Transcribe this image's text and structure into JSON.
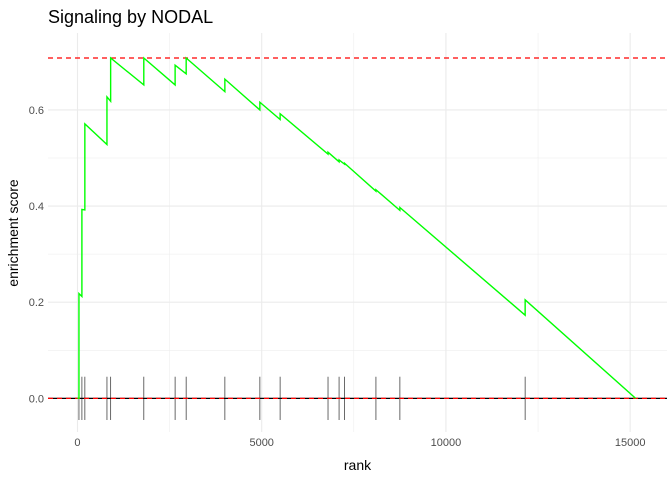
{
  "chart_data": {
    "type": "line",
    "title": "Signaling by NODAL",
    "xlabel": "rank",
    "ylabel": "enrichment score",
    "xlim": [
      -800,
      16000
    ],
    "ylim": [
      -0.07,
      0.76
    ],
    "x_ticks": [
      0,
      5000,
      10000,
      15000
    ],
    "x_tick_labels": [
      "0",
      "5000",
      "10000",
      "15000"
    ],
    "y_ticks": [
      0.0,
      0.2,
      0.4,
      0.6
    ],
    "y_tick_labels": [
      "0.0",
      "0.2",
      "0.4",
      "0.6"
    ],
    "grid": true,
    "colors": {
      "curve": "#00ff00",
      "threshold": "#ff0000",
      "baseline": "#000000",
      "ticks": "#444444",
      "grid": "#ebebeb"
    },
    "thresholds": {
      "max_es": 0.708,
      "baseline": 0.0
    },
    "enrichment_curve": [
      [
        0,
        0.0
      ],
      [
        40,
        0.0
      ],
      [
        40,
        0.218
      ],
      [
        120,
        0.212
      ],
      [
        120,
        0.393
      ],
      [
        200,
        0.392
      ],
      [
        200,
        0.571
      ],
      [
        800,
        0.528
      ],
      [
        800,
        0.627
      ],
      [
        900,
        0.618
      ],
      [
        900,
        0.708
      ],
      [
        1800,
        0.652
      ],
      [
        1800,
        0.708
      ],
      [
        2650,
        0.652
      ],
      [
        2650,
        0.693
      ],
      [
        2950,
        0.675
      ],
      [
        2950,
        0.708
      ],
      [
        4000,
        0.638
      ],
      [
        4000,
        0.664
      ],
      [
        4950,
        0.6
      ],
      [
        4950,
        0.616
      ],
      [
        5500,
        0.58
      ],
      [
        5500,
        0.592
      ],
      [
        6800,
        0.508
      ],
      [
        6800,
        0.512
      ],
      [
        7100,
        0.492
      ],
      [
        7100,
        0.496
      ],
      [
        7250,
        0.487
      ],
      [
        7250,
        0.489
      ],
      [
        8100,
        0.431
      ],
      [
        8100,
        0.434
      ],
      [
        8750,
        0.391
      ],
      [
        8750,
        0.397
      ],
      [
        12150,
        0.173
      ],
      [
        12150,
        0.205
      ],
      [
        15150,
        0.0
      ]
    ],
    "hit_ranks": [
      40,
      120,
      200,
      800,
      900,
      1800,
      2650,
      2950,
      4000,
      4950,
      5500,
      6800,
      7100,
      7250,
      8100,
      8750,
      12150
    ],
    "hit_tick_range": [
      -0.045,
      0.045
    ]
  }
}
